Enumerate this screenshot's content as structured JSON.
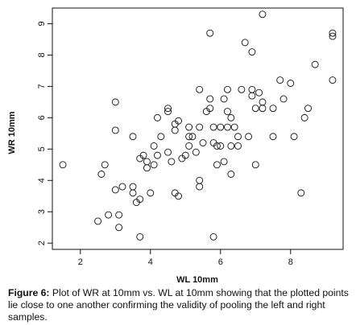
{
  "chart_data": {
    "type": "scatter",
    "xlabel": "WL 10mm",
    "ylabel": "WR 10mm",
    "xlim": [
      1.2,
      9.5
    ],
    "ylim": [
      1.8,
      9.5
    ],
    "xticks": [
      2,
      4,
      6,
      8
    ],
    "yticks": [
      2,
      3,
      4,
      5,
      6,
      7,
      8,
      9
    ],
    "grid": false,
    "marker": "open-circle",
    "points": [
      [
        1.5,
        4.5
      ],
      [
        2.5,
        2.7
      ],
      [
        2.6,
        4.2
      ],
      [
        2.7,
        4.5
      ],
      [
        2.8,
        2.9
      ],
      [
        3.0,
        6.5
      ],
      [
        3.0,
        5.6
      ],
      [
        3.0,
        3.7
      ],
      [
        3.1,
        2.9
      ],
      [
        3.1,
        2.5
      ],
      [
        3.2,
        3.8
      ],
      [
        3.5,
        5.4
      ],
      [
        3.5,
        3.8
      ],
      [
        3.5,
        3.6
      ],
      [
        3.6,
        3.3
      ],
      [
        3.7,
        4.7
      ],
      [
        3.7,
        3.4
      ],
      [
        3.7,
        2.2
      ],
      [
        3.8,
        4.8
      ],
      [
        3.9,
        4.4
      ],
      [
        3.9,
        4.6
      ],
      [
        4.0,
        3.6
      ],
      [
        4.1,
        5.1
      ],
      [
        4.1,
        4.5
      ],
      [
        4.2,
        6.0
      ],
      [
        4.2,
        4.8
      ],
      [
        4.3,
        5.4
      ],
      [
        4.5,
        6.3
      ],
      [
        4.5,
        6.2
      ],
      [
        4.5,
        4.9
      ],
      [
        4.6,
        4.6
      ],
      [
        4.7,
        5.8
      ],
      [
        4.7,
        5.6
      ],
      [
        4.8,
        5.9
      ],
      [
        4.7,
        3.6
      ],
      [
        4.8,
        3.5
      ],
      [
        4.9,
        4.7
      ],
      [
        5.0,
        4.8
      ],
      [
        5.1,
        5.7
      ],
      [
        5.1,
        5.4
      ],
      [
        5.1,
        5.1
      ],
      [
        5.2,
        5.4
      ],
      [
        5.3,
        4.9
      ],
      [
        5.4,
        6.9
      ],
      [
        5.4,
        5.7
      ],
      [
        5.5,
        5.2
      ],
      [
        5.4,
        4.0
      ],
      [
        5.4,
        3.8
      ],
      [
        5.6,
        6.2
      ],
      [
        5.7,
        6.3
      ],
      [
        5.7,
        6.6
      ],
      [
        5.7,
        8.7
      ],
      [
        5.8,
        5.7
      ],
      [
        5.8,
        5.2
      ],
      [
        5.9,
        4.5
      ],
      [
        5.9,
        5.1
      ],
      [
        6.0,
        5.7
      ],
      [
        6.0,
        5.1
      ],
      [
        6.1,
        4.6
      ],
      [
        6.1,
        6.6
      ],
      [
        6.2,
        6.9
      ],
      [
        6.2,
        6.2
      ],
      [
        6.3,
        6.0
      ],
      [
        6.3,
        5.1
      ],
      [
        6.3,
        4.2
      ],
      [
        6.4,
        5.7
      ],
      [
        6.5,
        5.4
      ],
      [
        6.5,
        5.1
      ],
      [
        6.6,
        6.9
      ],
      [
        6.7,
        8.4
      ],
      [
        6.8,
        5.4
      ],
      [
        6.9,
        8.1
      ],
      [
        6.9,
        6.9
      ],
      [
        6.9,
        6.7
      ],
      [
        7.0,
        6.3
      ],
      [
        7.0,
        4.5
      ],
      [
        7.1,
        6.8
      ],
      [
        7.2,
        6.5
      ],
      [
        7.2,
        6.3
      ],
      [
        7.2,
        9.3
      ],
      [
        7.5,
        6.3
      ],
      [
        7.5,
        5.4
      ],
      [
        7.7,
        7.2
      ],
      [
        7.8,
        6.6
      ],
      [
        8.0,
        7.1
      ],
      [
        8.1,
        5.4
      ],
      [
        8.3,
        3.6
      ],
      [
        8.4,
        6.0
      ],
      [
        8.5,
        6.3
      ],
      [
        8.7,
        7.7
      ],
      [
        9.2,
        8.7
      ],
      [
        9.2,
        8.6
      ],
      [
        9.2,
        7.2
      ],
      [
        6.2,
        5.7
      ],
      [
        5.8,
        2.2
      ]
    ]
  },
  "caption": {
    "label": "Figure 6:",
    "text": " Plot of WR at 10mm vs. WL at 10mm showing that the plotted points lie close to one another confirming the validity of pooling the left and right samples."
  }
}
